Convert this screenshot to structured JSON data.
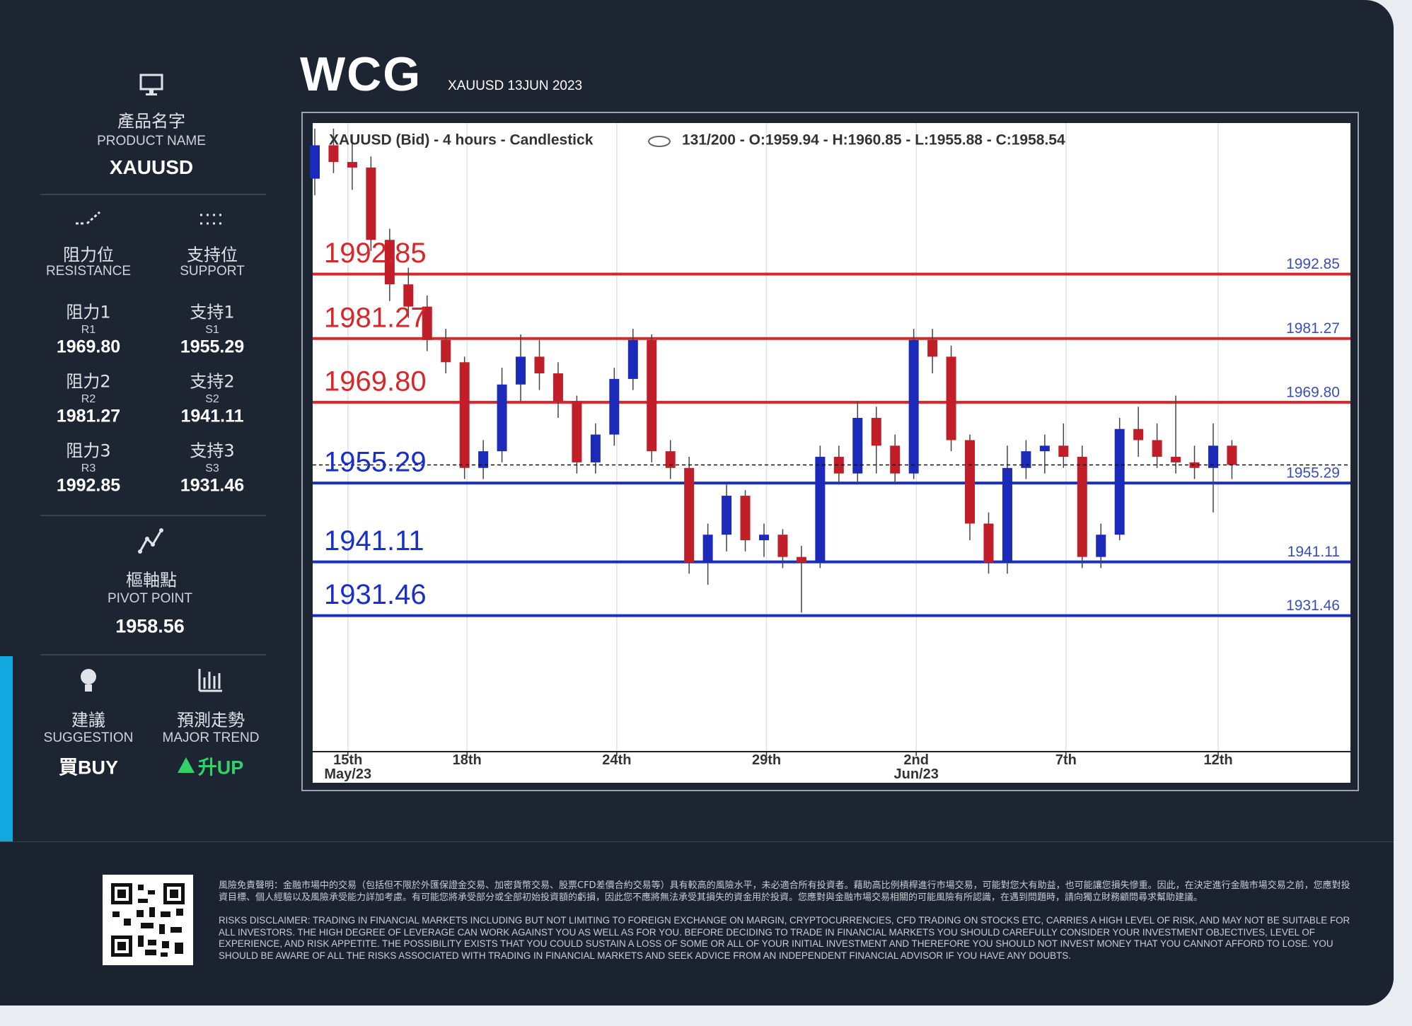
{
  "header": {
    "logo": "WCG",
    "subtitle": "XAUUSD 13JUN 2023"
  },
  "product": {
    "zh": "產品名字",
    "en": "PRODUCT NAME",
    "value": "XAUUSD"
  },
  "resistance": {
    "zh": "阻力位",
    "en": "RESISTANCE",
    "levels": [
      {
        "zh": "阻力1",
        "code": "R1",
        "value": "1969.80"
      },
      {
        "zh": "阻力2",
        "code": "R2",
        "value": "1981.27"
      },
      {
        "zh": "阻力3",
        "code": "R3",
        "value": "1992.85"
      }
    ]
  },
  "support": {
    "zh": "支持位",
    "en": "SUPPORT",
    "levels": [
      {
        "zh": "支持1",
        "code": "S1",
        "value": "1955.29"
      },
      {
        "zh": "支持2",
        "code": "S2",
        "value": "1941.11"
      },
      {
        "zh": "支持3",
        "code": "S3",
        "value": "1931.46"
      }
    ]
  },
  "pivot": {
    "zh": "樞軸點",
    "en": "PIVOT POINT",
    "value": "1958.56"
  },
  "suggestion": {
    "zh": "建議",
    "en": "SUGGESTION",
    "value": "買BUY"
  },
  "trend": {
    "zh": "預測走勢",
    "en": "MAJOR TREND",
    "value": "升UP"
  },
  "chart_data": {
    "type": "candlestick",
    "title": "XAUUSD (Bid) - 4 hours - Candlestick",
    "info": "131/200 - O:1959.94 - H:1960.85 - L:1955.88 - C:1958.54",
    "x": [
      0,
      3,
      6,
      9,
      12,
      15,
      18,
      21,
      24,
      27,
      30,
      33,
      36,
      39,
      42,
      45,
      48,
      51,
      54,
      57,
      60,
      63,
      66,
      69,
      72,
      75,
      78,
      81,
      84,
      87,
      90,
      93,
      96,
      99,
      102,
      105,
      108,
      111,
      114,
      117,
      120,
      123,
      126,
      129,
      132,
      135,
      138,
      141,
      144,
      147
    ],
    "open": [
      2010,
      2016,
      2013,
      2012,
      1999,
      1991,
      1987,
      1981,
      1977,
      1958,
      1961,
      1973,
      1978,
      1975,
      1970,
      1959,
      1964,
      1974,
      1981,
      1961,
      1958,
      1941,
      1946,
      1953,
      1945,
      1946,
      1942,
      1941,
      1960,
      1957,
      1967,
      1962,
      1957,
      1981,
      1978,
      1963,
      1948,
      1941,
      1958,
      1961,
      1962,
      1960,
      1942,
      1946,
      1965,
      1963,
      1960,
      1959,
      1958,
      1962
    ],
    "high": [
      2019,
      2019,
      2018,
      2014,
      2001,
      1994,
      1989,
      1983,
      1978,
      1963,
      1976,
      1982,
      1981,
      1977,
      1971,
      1966,
      1976,
      1983,
      1982,
      1963,
      1960,
      1948,
      1955,
      1954,
      1948,
      1947,
      1944,
      1962,
      1962,
      1970,
      1969,
      1964,
      1983,
      1983,
      1980,
      1964,
      1950,
      1962,
      1963,
      1964,
      1966,
      1962,
      1948,
      1967,
      1969,
      1966,
      1971,
      1962,
      1966,
      1963
    ],
    "low": [
      2007,
      2011,
      2008,
      1997,
      1988,
      1985,
      1979,
      1975,
      1956,
      1956,
      1959,
      1970,
      1972,
      1967,
      1957,
      1957,
      1962,
      1972,
      1959,
      1956,
      1939,
      1937,
      1943,
      1943,
      1942,
      1940,
      1932,
      1940,
      1955,
      1955,
      1957,
      1955,
      1956,
      1975,
      1961,
      1945,
      1939,
      1939,
      1956,
      1957,
      1958,
      1940,
      1940,
      1945,
      1960,
      1958,
      1957,
      1956,
      1950,
      1956
    ],
    "close": [
      2016,
      2013,
      2012,
      1999,
      1991,
      1987,
      1981,
      1977,
      1958,
      1961,
      1973,
      1978,
      1975,
      1970,
      1959,
      1964,
      1974,
      1981,
      1961,
      1958,
      1941,
      1946,
      1953,
      1945,
      1946,
      1942,
      1941,
      1960,
      1957,
      1967,
      1962,
      1957,
      1981,
      1978,
      1963,
      1948,
      1941,
      1958,
      1961,
      1962,
      1960,
      1942,
      1946,
      1965,
      1963,
      1960,
      1959,
      1958,
      1962,
      1958.54
    ],
    "up_color": "#1b2ab8",
    "down_color": "#c01f2a",
    "last_price": 1958.54,
    "levels": [
      {
        "value": 1992.85,
        "label": "1992.85",
        "color": "#d9262b"
      },
      {
        "value": 1981.27,
        "label": "1981.27",
        "color": "#d9262b"
      },
      {
        "value": 1969.8,
        "label": "1969.80",
        "color": "#d9262b"
      },
      {
        "value": 1955.29,
        "label": "1955.29",
        "color": "#1a2fc8"
      },
      {
        "value": 1941.11,
        "label": "1941.11",
        "color": "#1a2fc8"
      },
      {
        "value": 1931.46,
        "label": "1931.46",
        "color": "#1a2fc8"
      }
    ],
    "xlim": [
      0,
      166
    ],
    "ylim": [
      1907,
      2020
    ],
    "xticks": [
      {
        "value": 5.3,
        "label": [
          "15th",
          "May/23"
        ]
      },
      {
        "value": 24.4,
        "label": [
          "18th"
        ]
      },
      {
        "value": 48.4,
        "label": [
          "24th"
        ]
      },
      {
        "value": 72.4,
        "label": [
          "29th"
        ]
      },
      {
        "value": 96.4,
        "label": [
          "2nd",
          "Jun/23"
        ]
      },
      {
        "value": 120.4,
        "label": [
          "7th"
        ]
      },
      {
        "value": 144.8,
        "label": [
          "12th"
        ]
      }
    ],
    "grid": true
  },
  "disclaimer": {
    "zh": "風險免責聲明：金融市場中的交易（包括但不限於外匯保證金交易、加密貨幣交易、股票CFD差價合約交易等）具有較高的風險水平，未必適合所有投資者。藉助高比例槓桿進行市場交易，可能對您大有助益，也可能讓您損失慘重。因此，在決定進行金融市場交易之前，您應對投資目標、個人經驗以及風險承受能力詳加考慮。有可能您將承受部分或全部初始投資額的虧損，因此您不應將無法承受其損失的資金用於投資。您應對與金融市場交易相關的可能風險有所認識，在遇到問題時，請向獨立財務顧問尋求幫助建議。",
    "en": "RISKS DISCLAIMER: TRADING IN FINANCIAL MARKETS INCLUDING BUT NOT LIMITING TO FOREIGN EXCHANGE ON MARGIN, CRYPTOCURRENCIES, CFD TRADING ON STOCKS ETC, CARRIES A HIGH LEVEL OF RISK, AND MAY NOT BE SUITABLE FOR ALL INVESTORS. THE HIGH DEGREE OF LEVERAGE CAN WORK AGAINST YOU AS WELL AS FOR YOU. BEFORE DECIDING TO TRADE IN FINANCIAL MARKETS YOU SHOULD CAREFULLY CONSIDER YOUR INVESTMENT OBJECTIVES, LEVEL OF EXPERIENCE, AND RISK APPETITE. THE POSSIBILITY EXISTS THAT YOU COULD SUSTAIN A LOSS OF SOME OR ALL OF YOUR INITIAL INVESTMENT AND THEREFORE YOU SHOULD NOT INVEST MONEY THAT YOU CANNOT AFFORD TO LOSE. YOU SHOULD BE AWARE OF ALL THE RISKS ASSOCIATED WITH TRADING IN FINANCIAL MARKETS AND SEEK ADVICE FROM AN INDEPENDENT FINANCIAL ADVISOR IF YOU HAVE ANY DOUBTS."
  }
}
